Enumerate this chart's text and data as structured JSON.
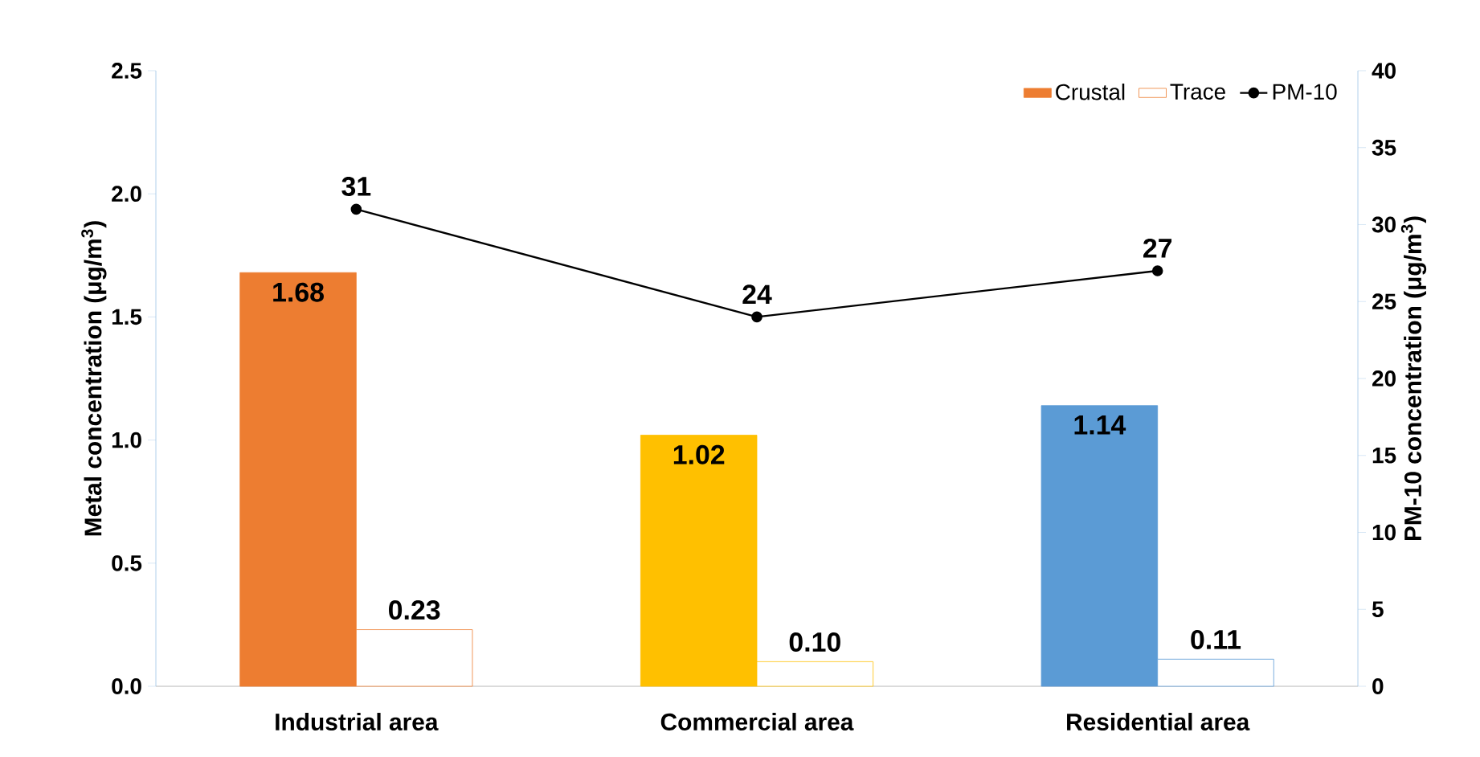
{
  "chart_data": {
    "type": "bar",
    "categories": [
      "Industrial area",
      "Commercial area",
      "Residential area"
    ],
    "ylabel": "Metal concentration (μg/m$^{3}$)",
    "y2label": "PM-10 concentration (μg/m$^{3}$)",
    "ylim": [
      0,
      2.5
    ],
    "yticks": [
      {
        "value": 0,
        "label": "0.0"
      },
      {
        "value": 0.5,
        "label": "0.5"
      },
      {
        "value": 1,
        "label": "1.0"
      },
      {
        "value": 1.5,
        "label": "1.5"
      },
      {
        "value": 2,
        "label": "2.0"
      },
      {
        "value": 2.5,
        "label": "2.5"
      }
    ],
    "y2lim": [
      0,
      40
    ],
    "y2ticks": [
      0,
      5,
      10,
      15,
      20,
      25,
      30,
      35,
      40
    ],
    "legend": "top right",
    "grid": false,
    "series": [
      {
        "name": "Crustal",
        "colors": [
          "#ed7d31",
          "#ffc000",
          "#5b9bd5"
        ],
        "values": [
          1.68,
          1.02,
          1.14
        ],
        "value_labels": [
          "1.68",
          "1.02",
          "1.14"
        ]
      },
      {
        "name": "Trace",
        "color": "#ffffff",
        "colors": [
          "#ed7d31",
          "#ffc000",
          "#5b9bd5"
        ],
        "values": [
          0.23,
          0.1,
          0.11
        ],
        "value_labels": [
          "0.23",
          "0.10",
          "0.11"
        ]
      },
      {
        "name": "PM-10",
        "type": "line",
        "axis": "y2",
        "color": "#000000",
        "marker": "circle",
        "values": [
          31,
          24,
          27
        ],
        "value_labels": [
          "31",
          "24",
          "27"
        ]
      }
    ]
  }
}
